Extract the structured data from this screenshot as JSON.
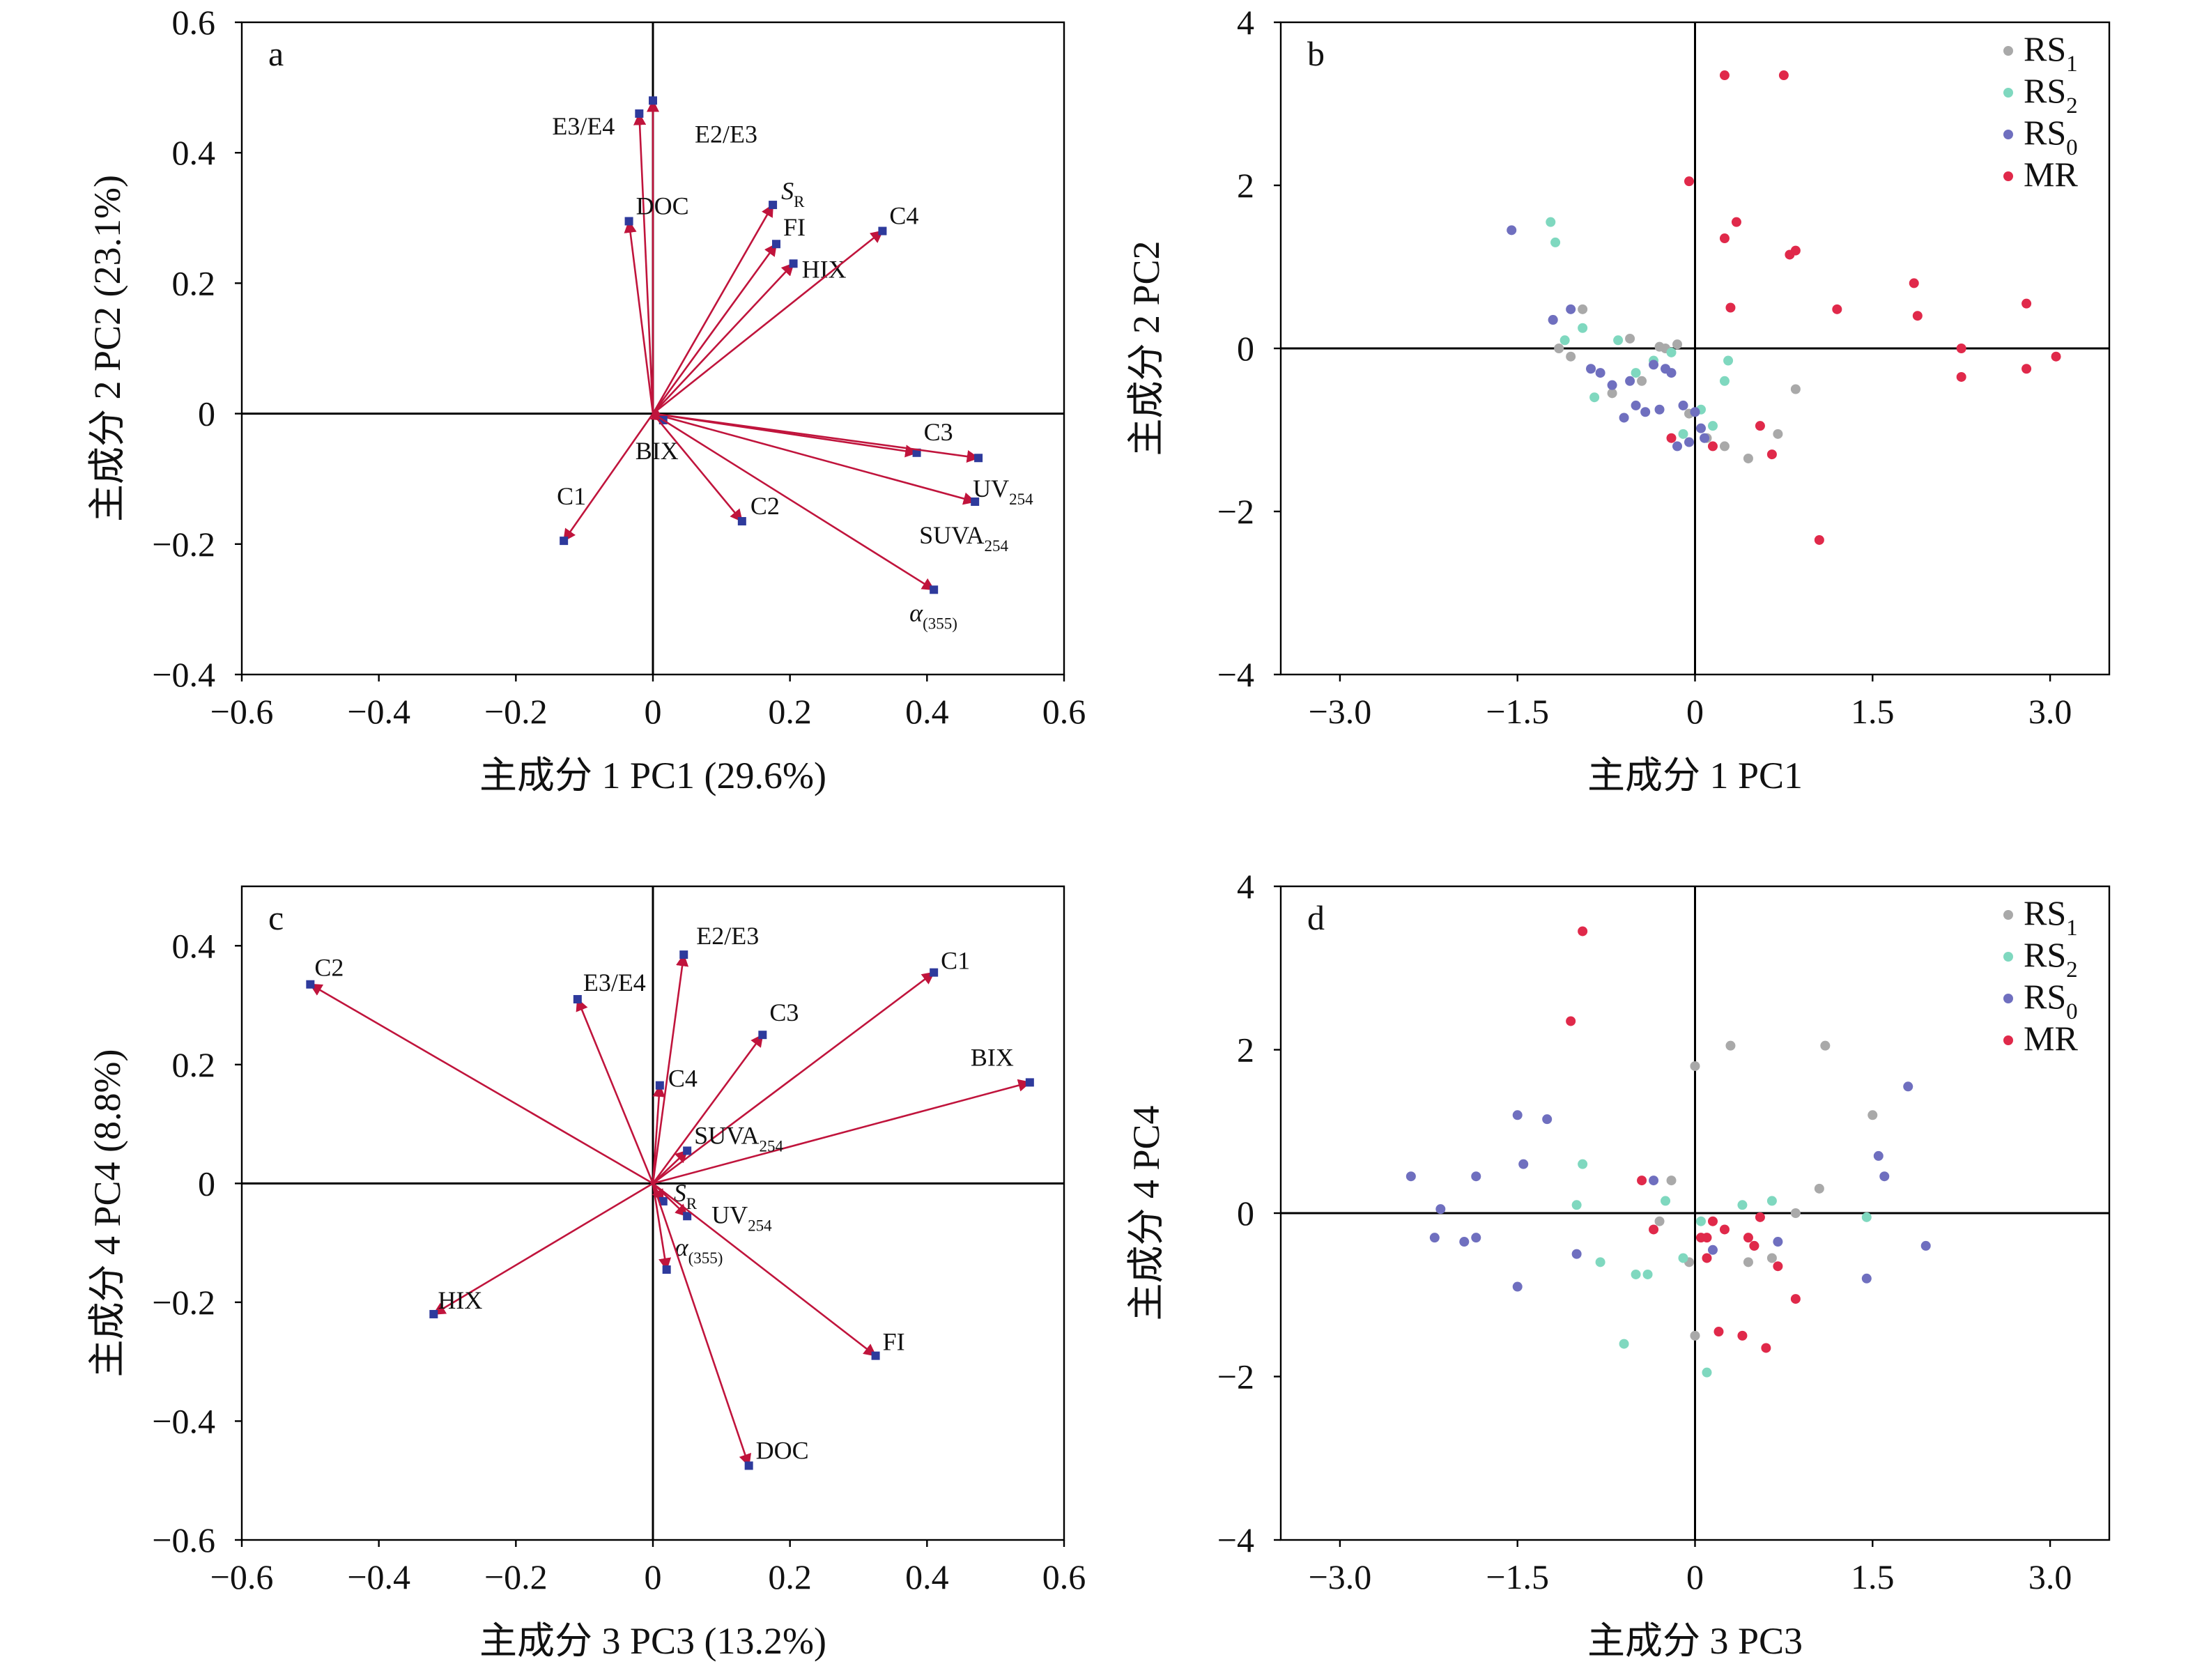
{
  "chart_data": [
    {
      "id": "a",
      "type": "biplot-loadings",
      "panel_label": "a",
      "xlabel": "主成分 1 PC1 (29.6%)",
      "ylabel": "主成分 2 PC2 (23.1%)",
      "xlim": [
        -0.6,
        0.6
      ],
      "ylim": [
        -0.4,
        0.6
      ],
      "xticks": [
        -0.6,
        -0.4,
        -0.2,
        0,
        0.2,
        0.4,
        0.6
      ],
      "yticks": [
        -0.4,
        -0.2,
        0,
        0.2,
        0.4,
        0.6
      ],
      "xtick_labels": [
        "−0.6",
        "−0.4",
        "−0.2",
        "0",
        "0.2",
        "0.4",
        "0.6"
      ],
      "ytick_labels": [
        "−0.4",
        "−0.2",
        "0",
        "0.2",
        "0.4",
        "0.6"
      ],
      "vectors": [
        {
          "label": "E3/E4",
          "main": "E3/E4",
          "sub": "",
          "x": -0.02,
          "y": 0.46
        },
        {
          "label": "E2/E3",
          "main": "E2/E3",
          "sub": "",
          "x": 0.0,
          "y": 0.48
        },
        {
          "label": "DOC",
          "main": "DOC",
          "sub": "",
          "x": -0.035,
          "y": 0.295
        },
        {
          "label": "SR",
          "main": "S",
          "sub": "R",
          "x": 0.175,
          "y": 0.32
        },
        {
          "label": "FI",
          "main": "FI",
          "sub": "",
          "x": 0.18,
          "y": 0.26
        },
        {
          "label": "HIX",
          "main": "HIX",
          "sub": "",
          "x": 0.205,
          "y": 0.23
        },
        {
          "label": "C4",
          "main": "C4",
          "sub": "",
          "x": 0.335,
          "y": 0.28
        },
        {
          "label": "C3",
          "main": "C3",
          "sub": "",
          "x": 0.385,
          "y": -0.06
        },
        {
          "label": "UV254",
          "main": "UV",
          "sub": "254",
          "x": 0.475,
          "y": -0.068
        },
        {
          "label": "SUVA254",
          "main": "SUVA",
          "sub": "254",
          "x": 0.47,
          "y": -0.135
        },
        {
          "label": "BIX",
          "main": "BIX",
          "sub": "",
          "x": 0.015,
          "y": -0.01
        },
        {
          "label": "C1",
          "main": "C1",
          "sub": "",
          "x": -0.13,
          "y": -0.195
        },
        {
          "label": "C2",
          "main": "C2",
          "sub": "",
          "x": 0.13,
          "y": -0.165
        },
        {
          "label": "α(355)",
          "main": "α",
          "sub": "(355)",
          "x": 0.41,
          "y": -0.27
        }
      ]
    },
    {
      "id": "b",
      "type": "scatter",
      "panel_label": "b",
      "xlabel": "主成分 1 PC1",
      "ylabel": "主成分 2 PC2",
      "xlim": [
        -3.5,
        3.5
      ],
      "ylim": [
        -4,
        4
      ],
      "xticks": [
        -3.0,
        -1.5,
        0,
        1.5,
        3.0
      ],
      "yticks": [
        -4,
        -2,
        0,
        2,
        4
      ],
      "xtick_labels": [
        "−3.0",
        "−1.5",
        "0",
        "1.5",
        "3.0"
      ],
      "ytick_labels": [
        "−4",
        "−2",
        "0",
        "2",
        "4"
      ],
      "legend_position": "top-right",
      "series": [
        {
          "name": "RS1",
          "name_main": "RS",
          "name_sub": "1",
          "color": "#a9a9a9",
          "points": [
            [
              -1.2,
              0.35
            ],
            [
              -1.15,
              0.0
            ],
            [
              -1.05,
              -0.1
            ],
            [
              -0.95,
              0.48
            ],
            [
              -0.7,
              -0.55
            ],
            [
              -0.55,
              0.12
            ],
            [
              -0.45,
              -0.4
            ],
            [
              -0.3,
              0.02
            ],
            [
              -0.25,
              0.0
            ],
            [
              -0.15,
              0.05
            ],
            [
              -0.05,
              -0.8
            ],
            [
              0.1,
              -1.1
            ],
            [
              0.25,
              -1.2
            ],
            [
              0.45,
              -1.35
            ],
            [
              0.7,
              -1.05
            ],
            [
              0.85,
              -0.5
            ]
          ]
        },
        {
          "name": "RS2",
          "name_main": "RS",
          "name_sub": "2",
          "color": "#7fd8bf",
          "points": [
            [
              -1.22,
              1.55
            ],
            [
              -1.18,
              1.3
            ],
            [
              -1.1,
              0.1
            ],
            [
              -0.95,
              0.25
            ],
            [
              -0.85,
              -0.6
            ],
            [
              -0.65,
              0.1
            ],
            [
              -0.5,
              -0.3
            ],
            [
              -0.35,
              -0.15
            ],
            [
              -0.2,
              -0.05
            ],
            [
              0.15,
              -0.95
            ],
            [
              0.25,
              -0.4
            ],
            [
              0.28,
              -0.15
            ],
            [
              0.05,
              -0.75
            ],
            [
              -0.1,
              -1.05
            ]
          ]
        },
        {
          "name": "RS0",
          "name_main": "RS",
          "name_sub": "0",
          "color": "#6f6fbf",
          "points": [
            [
              -1.55,
              1.45
            ],
            [
              -1.2,
              0.35
            ],
            [
              -1.05,
              0.48
            ],
            [
              -0.88,
              -0.25
            ],
            [
              -0.8,
              -0.3
            ],
            [
              -0.7,
              -0.45
            ],
            [
              -0.6,
              -0.85
            ],
            [
              -0.55,
              -0.4
            ],
            [
              -0.5,
              -0.7
            ],
            [
              -0.42,
              -0.78
            ],
            [
              -0.35,
              -0.2
            ],
            [
              -0.3,
              -0.75
            ],
            [
              -0.25,
              -0.25
            ],
            [
              -0.2,
              -0.3
            ],
            [
              -0.1,
              -0.7
            ],
            [
              0.0,
              -0.78
            ],
            [
              0.05,
              -0.98
            ],
            [
              0.08,
              -1.1
            ],
            [
              -0.05,
              -1.15
            ],
            [
              -0.15,
              -1.2
            ]
          ]
        },
        {
          "name": "MR",
          "name_main": "MR",
          "name_sub": "",
          "color": "#e0294a",
          "points": [
            [
              0.25,
              3.35
            ],
            [
              0.75,
              3.35
            ],
            [
              0.35,
              1.55
            ],
            [
              -0.05,
              2.05
            ],
            [
              0.25,
              1.35
            ],
            [
              0.8,
              1.15
            ],
            [
              0.85,
              1.2
            ],
            [
              0.3,
              0.5
            ],
            [
              1.2,
              0.48
            ],
            [
              1.85,
              0.8
            ],
            [
              1.88,
              0.4
            ],
            [
              2.25,
              0.0
            ],
            [
              2.25,
              -0.35
            ],
            [
              2.8,
              0.55
            ],
            [
              2.8,
              -0.25
            ],
            [
              3.05,
              -0.1
            ],
            [
              0.55,
              -0.95
            ],
            [
              0.65,
              -1.3
            ],
            [
              1.05,
              -2.35
            ],
            [
              -0.2,
              -1.1
            ],
            [
              0.15,
              -1.2
            ]
          ]
        }
      ]
    },
    {
      "id": "c",
      "type": "biplot-loadings",
      "panel_label": "c",
      "xlabel": "主成分 3 PC3 (13.2%)",
      "ylabel": "主成分 4 PC4 (8.8%)",
      "xlim": [
        -0.6,
        0.6
      ],
      "ylim": [
        -0.6,
        0.5
      ],
      "xticks": [
        -0.6,
        -0.4,
        -0.2,
        0,
        0.2,
        0.4,
        0.6
      ],
      "yticks": [
        -0.6,
        -0.4,
        -0.2,
        0,
        0.2,
        0.4
      ],
      "xtick_labels": [
        "−0.6",
        "−0.4",
        "−0.2",
        "0",
        "0.2",
        "0.4",
        "0.6"
      ],
      "ytick_labels": [
        "−0.6",
        "−0.4",
        "−0.2",
        "0",
        "0.2",
        "0.4"
      ],
      "vectors": [
        {
          "label": "C2",
          "main": "C2",
          "sub": "",
          "x": -0.5,
          "y": 0.335
        },
        {
          "label": "E3/E4",
          "main": "E3/E4",
          "sub": "",
          "x": -0.11,
          "y": 0.31
        },
        {
          "label": "E2/E3",
          "main": "E2/E3",
          "sub": "",
          "x": 0.045,
          "y": 0.385
        },
        {
          "label": "C1",
          "main": "C1",
          "sub": "",
          "x": 0.41,
          "y": 0.355
        },
        {
          "label": "C3",
          "main": "C3",
          "sub": "",
          "x": 0.16,
          "y": 0.25
        },
        {
          "label": "C4",
          "main": "C4",
          "sub": "",
          "x": 0.01,
          "y": 0.165
        },
        {
          "label": "BIX",
          "main": "BIX",
          "sub": "",
          "x": 0.55,
          "y": 0.17
        },
        {
          "label": "SUVA254",
          "main": "SUVA",
          "sub": "254",
          "x": 0.05,
          "y": 0.055
        },
        {
          "label": "SR",
          "main": "S",
          "sub": "R",
          "x": 0.015,
          "y": -0.03
        },
        {
          "label": "UV254",
          "main": "UV",
          "sub": "254",
          "x": 0.05,
          "y": -0.055
        },
        {
          "label": "α(355)",
          "main": "α",
          "sub": "(355)",
          "x": 0.02,
          "y": -0.145
        },
        {
          "label": "HIX",
          "main": "HIX",
          "sub": "",
          "x": -0.32,
          "y": -0.22
        },
        {
          "label": "FI",
          "main": "FI",
          "sub": "",
          "x": 0.325,
          "y": -0.29
        },
        {
          "label": "DOC",
          "main": "DOC",
          "sub": "",
          "x": 0.14,
          "y": -0.475
        }
      ]
    },
    {
      "id": "d",
      "type": "scatter",
      "panel_label": "d",
      "xlabel": "主成分 3 PC3",
      "ylabel": "主成分 4 PC4",
      "xlim": [
        -3.5,
        3.5
      ],
      "ylim": [
        -4,
        4
      ],
      "xticks": [
        -3.0,
        -1.5,
        0,
        1.5,
        3.0
      ],
      "yticks": [
        -4,
        -2,
        0,
        2,
        4
      ],
      "xtick_labels": [
        "−3.0",
        "−1.5",
        "0",
        "1.5",
        "3.0"
      ],
      "ytick_labels": [
        "−4",
        "−2",
        "0",
        "2",
        "4"
      ],
      "legend_position": "top-right",
      "series": [
        {
          "name": "RS1",
          "name_main": "RS",
          "name_sub": "1",
          "color": "#a9a9a9",
          "points": [
            [
              0.0,
              1.8
            ],
            [
              0.3,
              2.05
            ],
            [
              1.1,
              2.05
            ],
            [
              1.5,
              1.2
            ],
            [
              1.05,
              0.3
            ],
            [
              0.85,
              0.0
            ],
            [
              0.5,
              -0.4
            ],
            [
              0.45,
              -0.6
            ],
            [
              -0.2,
              0.4
            ],
            [
              -0.05,
              -0.6
            ],
            [
              0.65,
              -0.55
            ],
            [
              0.0,
              -1.5
            ],
            [
              -0.3,
              -0.1
            ]
          ]
        },
        {
          "name": "RS2",
          "name_main": "RS",
          "name_sub": "2",
          "color": "#7fd8bf",
          "points": [
            [
              -0.95,
              0.6
            ],
            [
              -1.0,
              0.1
            ],
            [
              -0.8,
              -0.6
            ],
            [
              -0.6,
              -1.6
            ],
            [
              -0.5,
              -0.75
            ],
            [
              -0.4,
              -0.75
            ],
            [
              -0.25,
              0.15
            ],
            [
              0.05,
              -0.1
            ],
            [
              0.1,
              -1.95
            ],
            [
              0.4,
              0.1
            ],
            [
              0.65,
              0.15
            ],
            [
              1.45,
              -0.05
            ],
            [
              -0.1,
              -0.55
            ]
          ]
        },
        {
          "name": "RS0",
          "name_main": "RS",
          "name_sub": "0",
          "color": "#6f6fbf",
          "points": [
            [
              -2.4,
              0.45
            ],
            [
              -2.2,
              -0.3
            ],
            [
              -2.15,
              0.05
            ],
            [
              -1.95,
              -0.35
            ],
            [
              -1.85,
              -0.3
            ],
            [
              -1.85,
              0.45
            ],
            [
              -1.5,
              1.2
            ],
            [
              -1.45,
              0.6
            ],
            [
              -1.25,
              1.15
            ],
            [
              -1.5,
              -0.9
            ],
            [
              -1.0,
              -0.5
            ],
            [
              0.7,
              -0.35
            ],
            [
              1.55,
              0.7
            ],
            [
              1.8,
              1.55
            ],
            [
              1.95,
              -0.4
            ],
            [
              1.6,
              0.45
            ],
            [
              1.45,
              -0.8
            ],
            [
              0.15,
              -0.45
            ],
            [
              -0.35,
              0.4
            ]
          ]
        },
        {
          "name": "MR",
          "name_main": "MR",
          "name_sub": "",
          "color": "#e0294a",
          "points": [
            [
              -0.95,
              3.45
            ],
            [
              -1.05,
              2.35
            ],
            [
              -0.45,
              0.4
            ],
            [
              -0.35,
              -0.2
            ],
            [
              0.05,
              -0.3
            ],
            [
              0.1,
              -0.3
            ],
            [
              0.1,
              -0.55
            ],
            [
              0.15,
              -0.1
            ],
            [
              0.2,
              -1.45
            ],
            [
              0.25,
              -0.2
            ],
            [
              0.4,
              -1.5
            ],
            [
              0.45,
              -0.3
            ],
            [
              0.5,
              -0.4
            ],
            [
              0.6,
              -1.65
            ],
            [
              0.7,
              -0.65
            ],
            [
              0.85,
              -1.05
            ],
            [
              0.55,
              -0.05
            ]
          ]
        }
      ]
    }
  ]
}
